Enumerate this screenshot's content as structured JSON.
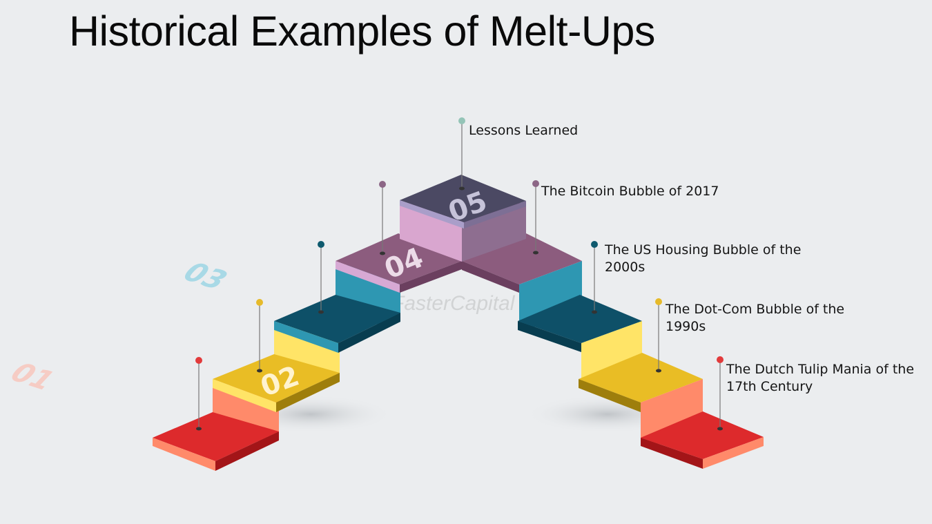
{
  "title": "Historical Examples of Melt-Ups",
  "watermark": "FasterCapital",
  "steps": [
    {
      "number": "01",
      "label": "The Dutch Tulip Mania of the 17th Century",
      "colors": {
        "top": "#dd2a2c",
        "front": "#ff8a6a",
        "side": "#a31518"
      },
      "dot": "#e23a3b"
    },
    {
      "number": "02",
      "label": "The Dot-Com Bubble of the 1990s",
      "colors": {
        "top": "#e9bd25",
        "front": "#ffe467",
        "side": "#9e7e0c"
      },
      "dot": "#e6ba2a"
    },
    {
      "number": "03",
      "label": "The US Housing Bubble of the 2000s",
      "colors": {
        "top": "#0e5068",
        "front": "#2e97b2",
        "side": "#083d50"
      },
      "dot": "#0e5a6e"
    },
    {
      "number": "04",
      "label": "The Bitcoin Bubble of 2017",
      "colors": {
        "top": "#8c5c7e",
        "front": "#d7a9d4",
        "side": "#6b3f5f"
      },
      "dot": "#8c6686"
    },
    {
      "number": "05",
      "label": "Lessons Learned",
      "colors": {
        "top": "#4b4963",
        "front": "#d9a6cf",
        "side": "#8e6e90"
      },
      "dot": "#94c4b7"
    }
  ]
}
